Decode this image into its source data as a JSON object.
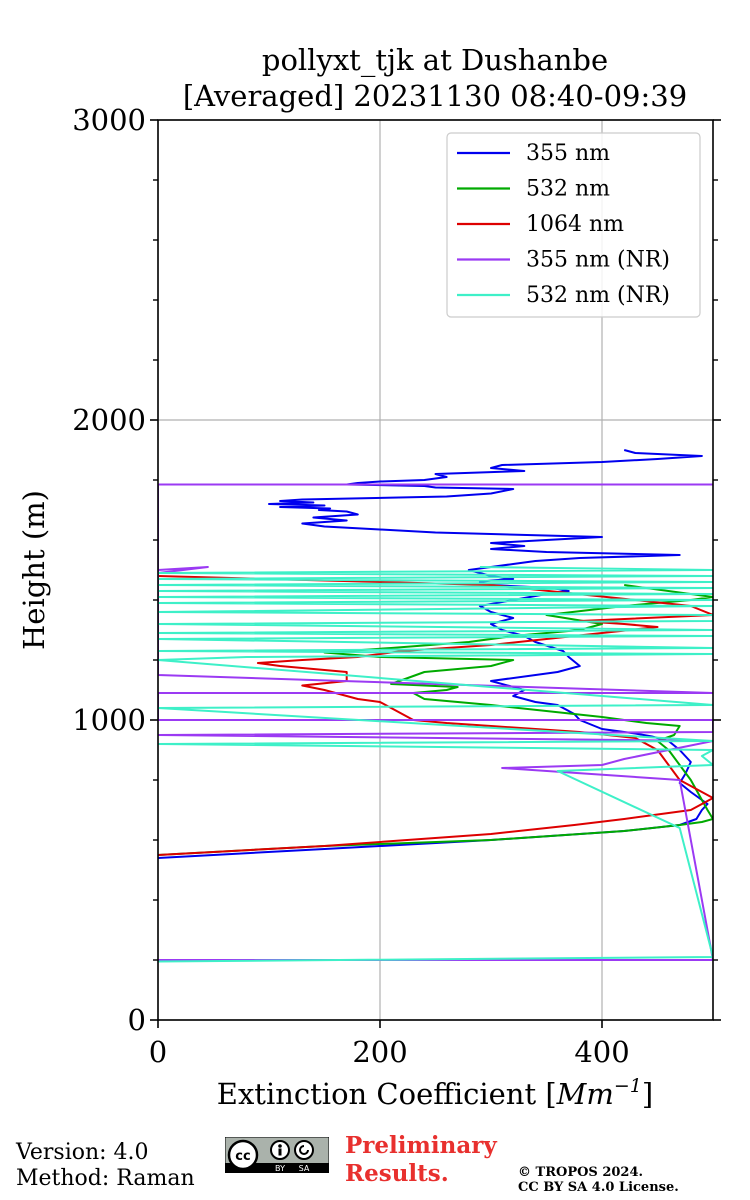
{
  "chart_data": {
    "type": "line",
    "title": [
      "pollyxt_tjk at Dushanbe",
      "[Averaged] 20231130 08:40-09:39"
    ],
    "xlabel": "Extinction Coefficient [",
    "xlabel_unit": "Mm",
    "xlabel_exp": "−1",
    "xlabel_close": "]",
    "ylabel": "Height (m)",
    "xlim": [
      0,
      500
    ],
    "ylim": [
      0,
      3000
    ],
    "xticks": [
      0,
      200,
      400
    ],
    "yticks": [
      0,
      1000,
      2000,
      3000
    ],
    "grid": true,
    "legend_position": "top-right",
    "series": [
      {
        "name": "355 nm",
        "color": "#0000ee",
        "x": [
          0,
          150,
          300,
          420,
          470,
          485,
          490,
          495,
          480,
          470,
          475,
          480,
          470,
          460,
          445,
          430,
          400,
          380,
          375,
          360,
          340,
          320,
          330,
          300,
          360,
          380,
          370,
          365,
          340,
          330,
          310,
          300,
          320,
          300,
          290,
          320,
          350,
          370,
          355,
          300,
          290,
          300,
          320,
          310,
          300,
          290,
          280,
          300,
          320,
          340,
          380,
          470,
          350,
          300,
          330,
          300,
          350,
          400,
          300,
          250,
          200,
          150,
          130,
          170,
          140,
          180,
          170,
          145,
          155,
          110,
          150,
          100,
          140,
          110,
          130,
          260,
          300,
          320,
          250,
          240,
          170,
          180,
          200,
          240,
          260,
          250,
          330,
          300,
          310,
          400,
          450,
          490,
          430,
          420
        ],
        "y": [
          540,
          570,
          600,
          630,
          650,
          670,
          700,
          720,
          760,
          790,
          820,
          860,
          900,
          930,
          945,
          955,
          970,
          1000,
          1020,
          1050,
          1060,
          1080,
          1100,
          1130,
          1160,
          1180,
          1210,
          1230,
          1260,
          1280,
          1300,
          1320,
          1340,
          1360,
          1380,
          1400,
          1420,
          1430,
          1440,
          1450,
          1460,
          1465,
          1470,
          1475,
          1480,
          1490,
          1500,
          1510,
          1520,
          1530,
          1540,
          1550,
          1560,
          1570,
          1580,
          1590,
          1600,
          1610,
          1620,
          1625,
          1635,
          1645,
          1655,
          1665,
          1675,
          1685,
          1695,
          1700,
          1705,
          1710,
          1715,
          1720,
          1725,
          1730,
          1735,
          1745,
          1755,
          1770,
          1775,
          1780,
          1785,
          1790,
          1795,
          1800,
          1810,
          1820,
          1830,
          1840,
          1850,
          1860,
          1870,
          1880,
          1890,
          1900
        ]
      },
      {
        "name": "532 nm",
        "color": "#00aa00",
        "x": [
          0,
          150,
          300,
          420,
          470,
          490,
          500,
          495,
          480,
          460,
          450,
          465,
          470,
          440,
          420,
          400,
          300,
          240,
          230,
          260,
          270,
          210,
          225,
          240,
          300,
          320,
          200,
          150,
          210,
          280,
          320,
          380,
          400,
          350,
          420,
          480,
          500,
          420
        ],
        "y": [
          550,
          580,
          600,
          630,
          650,
          660,
          670,
          700,
          800,
          900,
          930,
          950,
          980,
          990,
          1000,
          1010,
          1050,
          1070,
          1090,
          1100,
          1110,
          1120,
          1140,
          1160,
          1180,
          1200,
          1210,
          1225,
          1240,
          1260,
          1280,
          1300,
          1320,
          1350,
          1380,
          1400,
          1410,
          1450
        ]
      },
      {
        "name": "1064 nm",
        "color": "#dd0000",
        "x": [
          0,
          150,
          300,
          350,
          375,
          420,
          460,
          480,
          490,
          500,
          470,
          450,
          430,
          380,
          300,
          260,
          230,
          200,
          180,
          170,
          150,
          130,
          170,
          170,
          110,
          90,
          130,
          180,
          200,
          220,
          300,
          350,
          400,
          450,
          420,
          380,
          500,
          480,
          430,
          300,
          0
        ],
        "y": [
          550,
          580,
          620,
          640,
          650,
          670,
          690,
          700,
          720,
          740,
          800,
          900,
          940,
          960,
          980,
          990,
          1000,
          1060,
          1070,
          1080,
          1100,
          1115,
          1130,
          1160,
          1180,
          1190,
          1200,
          1210,
          1220,
          1230,
          1250,
          1270,
          1290,
          1310,
          1320,
          1330,
          1350,
          1380,
          1400,
          1450,
          1480
        ]
      },
      {
        "name": "355 nm (NR)",
        "color": "#9b3af3",
        "x": [
          0,
          500,
          470,
          310,
          400,
          420,
          500,
          0,
          500,
          500,
          0,
          0,
          500,
          0,
          0,
          45,
          0,
          0,
          500
        ],
        "y": [
          200,
          200,
          800,
          840,
          850,
          870,
          930,
          950,
          960,
          1000,
          1000,
          1090,
          1090,
          1150,
          1500,
          1510,
          1490,
          1785,
          1785
        ]
      },
      {
        "name": "532 nm (NR)",
        "color": "#3ef0c8",
        "x": [
          0,
          500,
          470,
          360,
          500,
          490,
          500,
          0,
          500,
          0,
          500,
          0,
          80,
          500,
          0,
          500,
          0,
          500,
          0,
          500,
          0,
          500,
          500,
          0,
          500,
          0,
          500,
          0,
          500,
          0,
          500,
          0,
          500,
          0,
          500,
          0,
          500,
          290
        ],
        "y": [
          195,
          210,
          640,
          830,
          850,
          880,
          900,
          920,
          930,
          1040,
          1050,
          1200,
          1210,
          1220,
          1230,
          1240,
          1270,
          1280,
          1290,
          1300,
          1320,
          1330,
          1350,
          1360,
          1380,
          1390,
          1400,
          1410,
          1420,
          1430,
          1440,
          1450,
          1460,
          1470,
          1480,
          1490,
          1500,
          1510
        ]
      }
    ]
  },
  "footer": {
    "version": "Version: 4.0",
    "method": "Method: Raman",
    "prelim_line1": "Preliminary",
    "prelim_line2": "Results.",
    "copyright_line1": "© TROPOS 2024.",
    "copyright_line2": "CC BY SA 4.0 License.",
    "cc_text": "cc",
    "cc_by": "BY",
    "cc_sa": "SA"
  }
}
